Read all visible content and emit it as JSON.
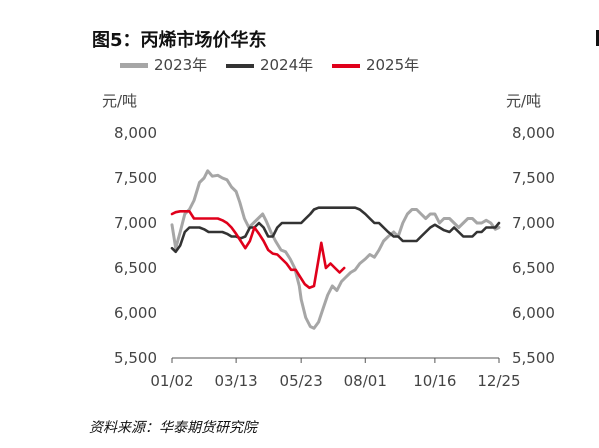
{
  "title": "图5：丙烯市场价华东",
  "unit_label": "元/吨",
  "source": "资料来源：华泰期货研究院",
  "colors": {
    "s2023": "#a6a6a6",
    "s2024": "#333333",
    "s2025": "#e0001b",
    "axis": "#555555"
  },
  "chart_data": {
    "type": "line",
    "title": "图5：丙烯市场价华东",
    "ylabel": "元/吨",
    "ylim": [
      5500,
      8000
    ],
    "yticks": [
      5500,
      6000,
      6500,
      7000,
      7500,
      8000
    ],
    "ytick_labels": [
      "5,500",
      "6,000",
      "6,500",
      "7,000",
      "7,500",
      "8,000"
    ],
    "xticks": [
      "01/02",
      "03/13",
      "05/23",
      "08/01",
      "10/16",
      "12/25"
    ],
    "grid": false,
    "legend": "top",
    "series": [
      {
        "name": "2023年",
        "color": "#a6a6a6",
        "points": [
          [
            "01/02",
            6980
          ],
          [
            "01/06",
            6720
          ],
          [
            "01/11",
            6900
          ],
          [
            "01/16",
            7100
          ],
          [
            "01/21",
            7150
          ],
          [
            "01/26",
            7250
          ],
          [
            "02/01",
            7450
          ],
          [
            "02/06",
            7500
          ],
          [
            "02/10",
            7580
          ],
          [
            "02/15",
            7520
          ],
          [
            "02/21",
            7530
          ],
          [
            "02/26",
            7500
          ],
          [
            "03/03",
            7480
          ],
          [
            "03/08",
            7400
          ],
          [
            "03/13",
            7350
          ],
          [
            "03/17",
            7230
          ],
          [
            "03/22",
            7050
          ],
          [
            "03/27",
            6950
          ],
          [
            "04/01",
            7000
          ],
          [
            "04/06",
            7050
          ],
          [
            "04/11",
            7100
          ],
          [
            "04/15",
            7020
          ],
          [
            "04/20",
            6900
          ],
          [
            "04/25",
            6800
          ],
          [
            "05/01",
            6700
          ],
          [
            "05/06",
            6680
          ],
          [
            "05/11",
            6600
          ],
          [
            "05/16",
            6500
          ],
          [
            "05/21",
            6300
          ],
          [
            "05/23",
            6150
          ],
          [
            "05/28",
            5950
          ],
          [
            "06/02",
            5850
          ],
          [
            "06/06",
            5830
          ],
          [
            "06/11",
            5900
          ],
          [
            "06/16",
            6050
          ],
          [
            "06/21",
            6200
          ],
          [
            "06/26",
            6300
          ],
          [
            "07/01",
            6250
          ],
          [
            "07/06",
            6350
          ],
          [
            "07/11",
            6400
          ],
          [
            "07/16",
            6450
          ],
          [
            "07/21",
            6480
          ],
          [
            "07/26",
            6550
          ],
          [
            "08/01",
            6600
          ],
          [
            "08/06",
            6650
          ],
          [
            "08/11",
            6620
          ],
          [
            "08/16",
            6700
          ],
          [
            "08/21",
            6800
          ],
          [
            "08/26",
            6850
          ],
          [
            "09/01",
            6900
          ],
          [
            "09/06",
            6850
          ],
          [
            "09/11",
            7000
          ],
          [
            "09/16",
            7100
          ],
          [
            "09/21",
            7150
          ],
          [
            "09/26",
            7150
          ],
          [
            "10/01",
            7100
          ],
          [
            "10/06",
            7050
          ],
          [
            "10/11",
            7100
          ],
          [
            "10/16",
            7100
          ],
          [
            "10/21",
            7000
          ],
          [
            "10/26",
            7050
          ],
          [
            "11/01",
            7050
          ],
          [
            "11/06",
            7000
          ],
          [
            "11/11",
            6950
          ],
          [
            "11/16",
            7000
          ],
          [
            "11/21",
            7050
          ],
          [
            "11/26",
            7050
          ],
          [
            "12/01",
            7000
          ],
          [
            "12/06",
            7000
          ],
          [
            "12/11",
            7030
          ],
          [
            "12/16",
            7000
          ],
          [
            "12/21",
            6930
          ],
          [
            "12/25",
            6950
          ]
        ]
      },
      {
        "name": "2024年",
        "color": "#333333",
        "points": [
          [
            "01/02",
            6720
          ],
          [
            "01/06",
            6680
          ],
          [
            "01/11",
            6750
          ],
          [
            "01/16",
            6900
          ],
          [
            "01/21",
            6950
          ],
          [
            "01/26",
            6950
          ],
          [
            "02/01",
            6950
          ],
          [
            "02/06",
            6930
          ],
          [
            "02/11",
            6900
          ],
          [
            "02/16",
            6900
          ],
          [
            "02/21",
            6900
          ],
          [
            "02/26",
            6900
          ],
          [
            "03/03",
            6880
          ],
          [
            "03/08",
            6850
          ],
          [
            "03/13",
            6850
          ],
          [
            "03/18",
            6830
          ],
          [
            "03/23",
            6850
          ],
          [
            "03/28",
            6950
          ],
          [
            "04/02",
            6950
          ],
          [
            "04/07",
            7000
          ],
          [
            "04/12",
            6950
          ],
          [
            "04/17",
            6850
          ],
          [
            "04/22",
            6850
          ],
          [
            "04/27",
            6950
          ],
          [
            "05/02",
            7000
          ],
          [
            "05/07",
            7000
          ],
          [
            "05/12",
            7000
          ],
          [
            "05/17",
            7000
          ],
          [
            "05/23",
            7000
          ],
          [
            "05/28",
            7050
          ],
          [
            "06/02",
            7100
          ],
          [
            "06/06",
            7150
          ],
          [
            "06/11",
            7170
          ],
          [
            "06/16",
            7170
          ],
          [
            "06/21",
            7170
          ],
          [
            "06/26",
            7170
          ],
          [
            "07/01",
            7170
          ],
          [
            "07/06",
            7170
          ],
          [
            "07/11",
            7170
          ],
          [
            "07/16",
            7170
          ],
          [
            "07/21",
            7170
          ],
          [
            "07/26",
            7150
          ],
          [
            "08/01",
            7100
          ],
          [
            "08/06",
            7050
          ],
          [
            "08/11",
            7000
          ],
          [
            "08/16",
            7000
          ],
          [
            "08/21",
            6950
          ],
          [
            "08/26",
            6900
          ],
          [
            "09/01",
            6850
          ],
          [
            "09/06",
            6850
          ],
          [
            "09/11",
            6800
          ],
          [
            "09/16",
            6800
          ],
          [
            "09/21",
            6800
          ],
          [
            "09/26",
            6800
          ],
          [
            "10/01",
            6850
          ],
          [
            "10/06",
            6900
          ],
          [
            "10/11",
            6950
          ],
          [
            "10/16",
            6980
          ],
          [
            "10/21",
            6950
          ],
          [
            "10/26",
            6920
          ],
          [
            "11/01",
            6900
          ],
          [
            "11/06",
            6950
          ],
          [
            "11/11",
            6900
          ],
          [
            "11/16",
            6850
          ],
          [
            "11/21",
            6850
          ],
          [
            "11/26",
            6850
          ],
          [
            "12/01",
            6900
          ],
          [
            "12/06",
            6900
          ],
          [
            "12/11",
            6950
          ],
          [
            "12/16",
            6950
          ],
          [
            "12/21",
            6950
          ],
          [
            "12/25",
            7000
          ]
        ]
      },
      {
        "name": "2025年",
        "color": "#e0001b",
        "points": [
          [
            "01/02",
            7100
          ],
          [
            "01/06",
            7120
          ],
          [
            "01/11",
            7130
          ],
          [
            "01/16",
            7130
          ],
          [
            "01/21",
            7130
          ],
          [
            "01/26",
            7050
          ],
          [
            "02/01",
            7050
          ],
          [
            "02/06",
            7050
          ],
          [
            "02/11",
            7050
          ],
          [
            "02/16",
            7050
          ],
          [
            "02/21",
            7050
          ],
          [
            "02/26",
            7030
          ],
          [
            "03/03",
            7000
          ],
          [
            "03/08",
            6950
          ],
          [
            "03/13",
            6880
          ],
          [
            "03/18",
            6800
          ],
          [
            "03/23",
            6720
          ],
          [
            "03/28",
            6800
          ],
          [
            "04/02",
            6950
          ],
          [
            "04/07",
            6880
          ],
          [
            "04/12",
            6800
          ],
          [
            "04/17",
            6700
          ],
          [
            "04/22",
            6660
          ],
          [
            "04/27",
            6650
          ],
          [
            "05/02",
            6600
          ],
          [
            "05/07",
            6550
          ],
          [
            "05/12",
            6480
          ],
          [
            "05/17",
            6480
          ],
          [
            "05/22",
            6400
          ],
          [
            "05/27",
            6320
          ],
          [
            "06/01",
            6280
          ],
          [
            "06/06",
            6300
          ],
          [
            "06/11",
            6600
          ],
          [
            "06/14",
            6780
          ],
          [
            "06/19",
            6500
          ],
          [
            "06/24",
            6550
          ],
          [
            "06/29",
            6500
          ],
          [
            "07/04",
            6450
          ],
          [
            "07/09",
            6500
          ]
        ]
      }
    ]
  }
}
